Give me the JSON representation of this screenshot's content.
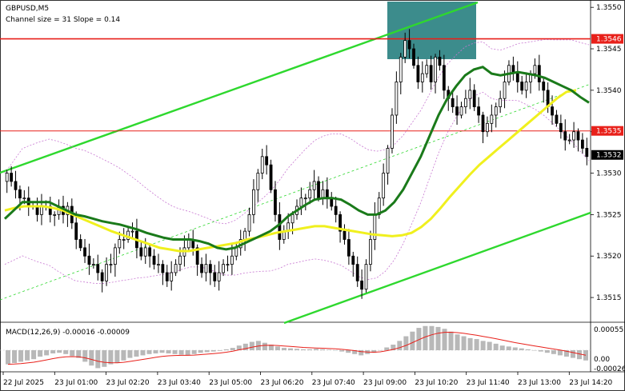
{
  "header": {
    "symbol": "GBPUSD,M5",
    "channel_info": "Channel size = 31 Slope = 0.14"
  },
  "macd": {
    "label": "MACD(12,26,9) -0.00016 -0.00009",
    "scale": [
      "0.00055",
      "0.00",
      "-0.00026"
    ]
  },
  "colors": {
    "background": "#ffffff",
    "candles": "#000000",
    "red_level": "#e8201a",
    "teal_zone": "#3c8c8c",
    "channel": "#2ed82e",
    "ma_fast": "#1a7a1a",
    "ma_slow": "#f0f01e",
    "bollinger": "#c878d2",
    "macd_hist": "#b8b8b8",
    "macd_signal": "#e8201a"
  },
  "chart_data": {
    "type": "candlestick",
    "symbol": "GBPUSD",
    "timeframe": "M5",
    "ylim": [
      1.35125,
      1.35505
    ],
    "y_ticks": [
      "1.3550",
      "1.3545",
      "1.3540",
      "1.3535",
      "1.3530",
      "1.3525",
      "1.3520",
      "1.3515"
    ],
    "x_ticks": [
      "22 Jul 2025",
      "23 Jul 01:00",
      "23 Jul 02:20",
      "23 Jul 03:40",
      "23 Jul 05:00",
      "23 Jul 06:20",
      "23 Jul 07:40",
      "23 Jul 09:00",
      "23 Jul 10:20",
      "23 Jul 11:40",
      "23 Jul 13:00",
      "23 Jul 14:20"
    ],
    "price_labels": [
      {
        "text": "1.3546",
        "value": 1.35462,
        "color": "#e8201a"
      },
      {
        "text": "1.3535",
        "value": 1.35351,
        "color": "#e8201a"
      },
      {
        "text": "1.3532",
        "value": 1.35322,
        "color": "#000000"
      }
    ],
    "levels": [
      {
        "name": "resistance",
        "value": 1.35462
      },
      {
        "name": "support",
        "value": 1.35351
      }
    ],
    "series": [
      {
        "name": "close",
        "values": [
          1.353,
          1.3529,
          1.3528,
          1.3527,
          1.3527,
          1.3526,
          1.3526,
          1.3525,
          1.3526,
          1.3526,
          1.3525,
          1.3525,
          1.3526,
          1.3525,
          1.3526,
          1.3524,
          1.3522,
          1.3521,
          1.352,
          1.3519,
          1.3519,
          1.3518,
          1.3517,
          1.3519,
          1.3519,
          1.3521,
          1.3522,
          1.3522,
          1.3523,
          1.3523,
          1.3521,
          1.352,
          1.3521,
          1.352,
          1.3519,
          1.3519,
          1.3518,
          1.3517,
          1.3518,
          1.3519,
          1.352,
          1.3521,
          1.3522,
          1.3521,
          1.3519,
          1.3518,
          1.3519,
          1.3518,
          1.3517,
          1.3518,
          1.3519,
          1.3519,
          1.352,
          1.3521,
          1.3522,
          1.3523,
          1.3525,
          1.3528,
          1.353,
          1.3532,
          1.3531,
          1.3528,
          1.3525,
          1.3522,
          1.3523,
          1.3524,
          1.3525,
          1.3526,
          1.3527,
          1.3527,
          1.3528,
          1.3529,
          1.3527,
          1.3528,
          1.3527,
          1.3526,
          1.3525,
          1.3523,
          1.3522,
          1.352,
          1.3519,
          1.3517,
          1.3516,
          1.3519,
          1.3522,
          1.3525,
          1.3527,
          1.353,
          1.3533,
          1.3537,
          1.3541,
          1.3544,
          1.3546,
          1.3545,
          1.3543,
          1.3541,
          1.3542,
          1.3543,
          1.3541,
          1.3544,
          1.3543,
          1.354,
          1.3539,
          1.3538,
          1.3537,
          1.3538,
          1.3539,
          1.354,
          1.3538,
          1.3537,
          1.3535,
          1.3536,
          1.3537,
          1.3538,
          1.3539,
          1.3541,
          1.3543,
          1.3542,
          1.3541,
          1.354,
          1.3541,
          1.3542,
          1.3543,
          1.3541,
          1.354,
          1.3538,
          1.3537,
          1.3536,
          1.3535,
          1.3534,
          1.3534,
          1.3535,
          1.3534,
          1.3533,
          1.3532
        ]
      },
      {
        "name": "ma_fast",
        "values": [
          1.35245,
          1.35255,
          1.35265,
          1.35265,
          1.35265,
          1.35265,
          1.3526,
          1.35255,
          1.3525,
          1.35248,
          1.35245,
          1.35242,
          1.3524,
          1.35238,
          1.35235,
          1.35232,
          1.35228,
          1.35225,
          1.35222,
          1.3522,
          1.3522,
          1.3522,
          1.35218,
          1.35215,
          1.3521,
          1.35208,
          1.3521,
          1.35215,
          1.3522,
          1.35225,
          1.3523,
          1.35238,
          1.35248,
          1.35255,
          1.35262,
          1.35268,
          1.3527,
          1.3527,
          1.35268,
          1.35262,
          1.35255,
          1.3525,
          1.3525,
          1.35255,
          1.35265,
          1.3528,
          1.353,
          1.3532,
          1.35345,
          1.3537,
          1.3539,
          1.35405,
          1.35418,
          1.35425,
          1.35428,
          1.3542,
          1.35418,
          1.3542,
          1.35422,
          1.3542,
          1.35418,
          1.35415,
          1.3541,
          1.35405,
          1.354,
          1.35392,
          1.35385
        ]
      },
      {
        "name": "ma_slow",
        "values": [
          1.35255,
          1.35258,
          1.3526,
          1.3526,
          1.3526,
          1.35258,
          1.35255,
          1.3525,
          1.35245,
          1.3524,
          1.35235,
          1.3523,
          1.35226,
          1.35222,
          1.35218,
          1.35214,
          1.3521,
          1.35208,
          1.35206,
          1.35206,
          1.35208,
          1.3521,
          1.35212,
          1.35214,
          1.35216,
          1.3522,
          1.35222,
          1.35225,
          1.35228,
          1.3523,
          1.35232,
          1.35234,
          1.35236,
          1.35236,
          1.35234,
          1.35232,
          1.3523,
          1.35228,
          1.35226,
          1.35225,
          1.35224,
          1.35225,
          1.35228,
          1.35235,
          1.35245,
          1.35258,
          1.35272,
          1.35285,
          1.35298,
          1.3531,
          1.3532,
          1.3533,
          1.3534,
          1.3535,
          1.3536,
          1.3537,
          1.3538,
          1.3539,
          1.35398,
          1.354
        ]
      }
    ],
    "macd_hist": [
      -0.00022,
      -0.0002,
      -0.00018,
      -0.00016,
      -0.00014,
      -0.0001,
      -8e-05,
      -5e-05,
      -4e-05,
      -6e-05,
      -9e-05,
      -0.00012,
      -0.00018,
      -0.00024,
      -0.00028,
      -0.00026,
      -0.00022,
      -0.0002,
      -0.00016,
      -0.00012,
      -0.0001,
      -8e-05,
      -6e-05,
      -5e-05,
      -4e-05,
      -5e-05,
      -6e-05,
      -7e-05,
      -8e-05,
      -6e-05,
      -4e-05,
      -3e-05,
      -2e-05,
      -1e-05,
      2e-05,
      5e-05,
      0.0001,
      0.00014,
      0.00018,
      0.0002,
      0.00016,
      0.00012,
      8e-05,
      5e-05,
      4e-05,
      3e-05,
      2e-05,
      2e-05,
      3e-05,
      2e-05,
      1e-05,
      0.0,
      -2e-05,
      -4e-05,
      -6e-05,
      -8e-05,
      -6e-05,
      -4e-05,
      0.0,
      6e-05,
      0.00012,
      0.0002,
      0.0003,
      0.0004,
      0.00048,
      0.00052,
      0.00052,
      0.0005,
      0.00046,
      0.0004,
      0.00034,
      0.0003,
      0.00026,
      0.00024,
      0.0002,
      0.00018,
      0.00014,
      0.0001,
      8e-05,
      6e-05,
      4e-05,
      2e-05,
      0.0,
      -2e-05,
      -4e-05,
      -6e-05,
      -8e-05,
      -0.0001,
      -0.00012,
      -0.00014,
      -0.00016
    ],
    "grid": false,
    "legend": "top-left"
  }
}
